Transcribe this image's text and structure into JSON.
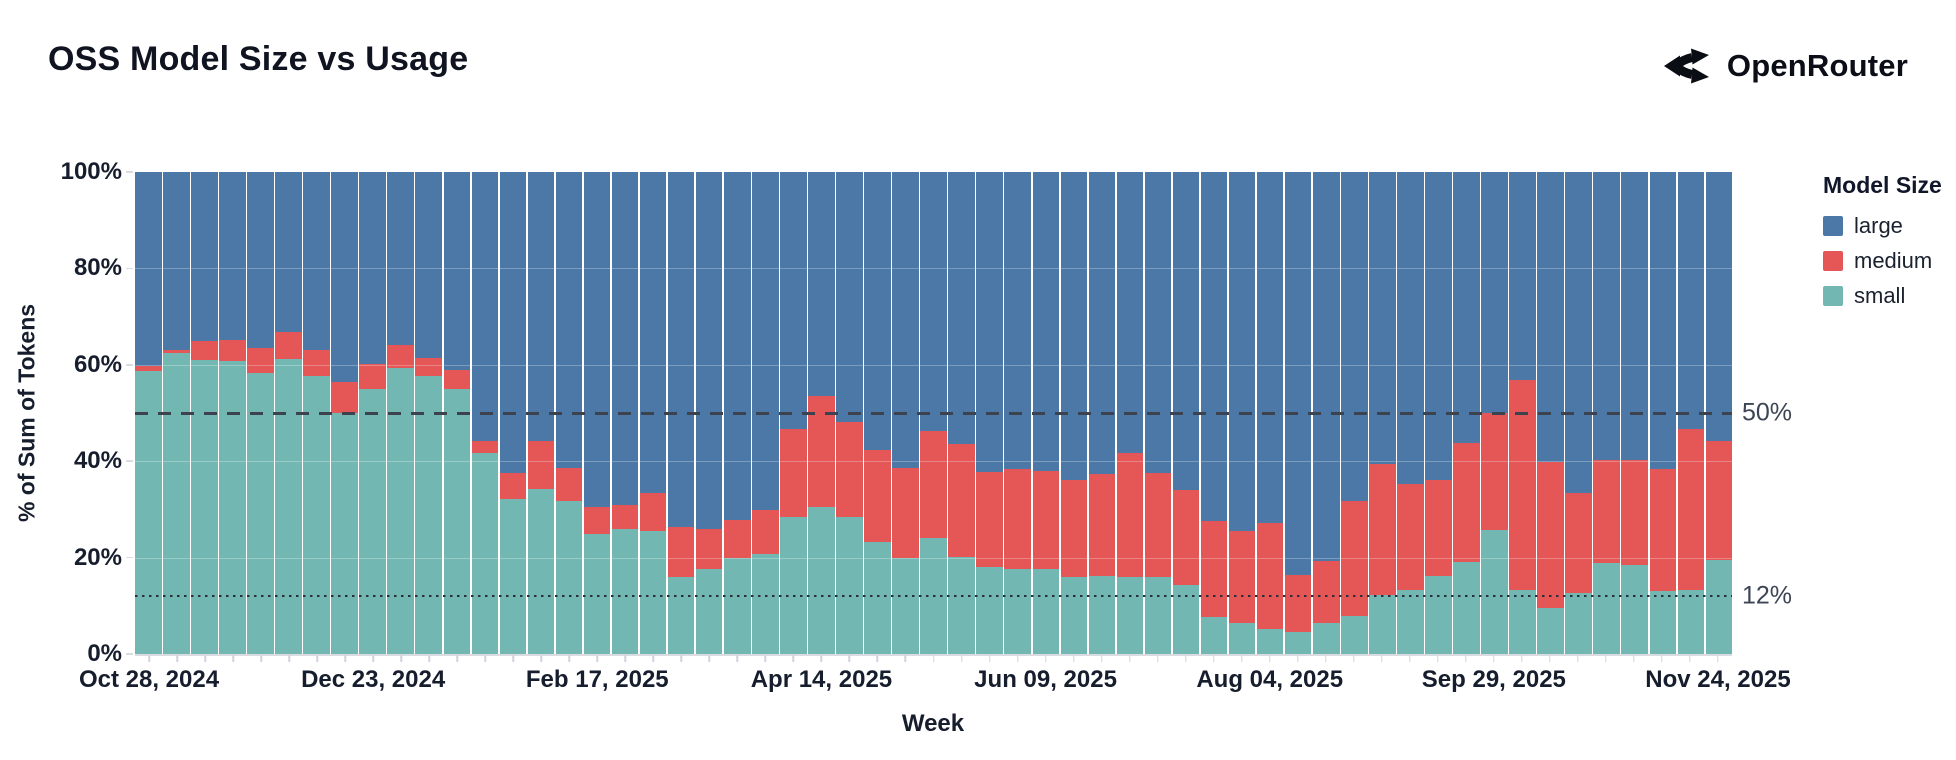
{
  "title": "OSS Model Size vs Usage",
  "brand": {
    "name": "OpenRouter"
  },
  "legend": {
    "title": "Model Size",
    "items": [
      {
        "key": "large",
        "label": "large",
        "color": "#4c78a8"
      },
      {
        "key": "medium",
        "label": "medium",
        "color": "#e45756"
      },
      {
        "key": "small",
        "label": "small",
        "color": "#72b7b2"
      }
    ]
  },
  "axes": {
    "y_title": "% of Sum of Tokens",
    "x_title": "Week",
    "y_ticks": [
      {
        "label": "0%",
        "value": 0
      },
      {
        "label": "20%",
        "value": 20
      },
      {
        "label": "40%",
        "value": 40
      },
      {
        "label": "60%",
        "value": 60
      },
      {
        "label": "80%",
        "value": 80
      },
      {
        "label": "100%",
        "value": 100
      }
    ],
    "x_ticks": [
      {
        "label": "Oct 28, 2024",
        "index": 0
      },
      {
        "label": "Dec 23, 2024",
        "index": 8
      },
      {
        "label": "Feb 17, 2025",
        "index": 16
      },
      {
        "label": "Apr 14, 2025",
        "index": 24
      },
      {
        "label": "Jun 09, 2025",
        "index": 32
      },
      {
        "label": "Aug 04, 2025",
        "index": 40
      },
      {
        "label": "Sep 29, 2025",
        "index": 48
      },
      {
        "label": "Nov 24, 2025",
        "index": 56
      }
    ],
    "gridline_values": [
      20,
      40,
      60,
      80
    ]
  },
  "annotations": [
    {
      "label": "50%",
      "value": 50,
      "style": "dashed"
    },
    {
      "label": "12%",
      "value": 12,
      "style": "dotted"
    }
  ],
  "chart_data": {
    "type": "bar",
    "stacked": true,
    "normalized": true,
    "unit": "%",
    "ylim": [
      0,
      100
    ],
    "stack_order_top_to_bottom": [
      "large",
      "medium",
      "small"
    ],
    "title": "OSS Model Size vs Usage",
    "xlabel": "Week",
    "ylabel": "% of Sum of Tokens",
    "legend_position": "right",
    "weeks": [
      {
        "week": "2024-10-28",
        "small": 58.8,
        "medium": 1.0,
        "large": 40.2
      },
      {
        "week": "2024-11-04",
        "small": 62.4,
        "medium": 0.7,
        "large": 36.9
      },
      {
        "week": "2024-11-11",
        "small": 61.0,
        "medium": 3.9,
        "large": 35.1
      },
      {
        "week": "2024-11-18",
        "small": 60.8,
        "medium": 4.4,
        "large": 34.8
      },
      {
        "week": "2024-11-25",
        "small": 58.4,
        "medium": 5.0,
        "large": 36.6
      },
      {
        "week": "2024-12-02",
        "small": 61.2,
        "medium": 5.7,
        "large": 33.1
      },
      {
        "week": "2024-12-09",
        "small": 57.6,
        "medium": 5.5,
        "large": 36.9
      },
      {
        "week": "2024-12-16",
        "small": 50.0,
        "medium": 6.5,
        "large": 43.5
      },
      {
        "week": "2024-12-23",
        "small": 54.9,
        "medium": 5.3,
        "large": 39.8
      },
      {
        "week": "2024-12-30",
        "small": 59.3,
        "medium": 4.9,
        "large": 35.8
      },
      {
        "week": "2025-01-06",
        "small": 57.7,
        "medium": 3.8,
        "large": 38.5
      },
      {
        "week": "2025-01-13",
        "small": 54.9,
        "medium": 4.1,
        "large": 41.0
      },
      {
        "week": "2025-01-20",
        "small": 41.6,
        "medium": 2.5,
        "large": 55.9
      },
      {
        "week": "2025-01-27",
        "small": 32.1,
        "medium": 5.5,
        "large": 62.4
      },
      {
        "week": "2025-02-03",
        "small": 34.3,
        "medium": 9.8,
        "large": 55.9
      },
      {
        "week": "2025-02-10",
        "small": 31.7,
        "medium": 6.8,
        "large": 61.5
      },
      {
        "week": "2025-02-17",
        "small": 24.9,
        "medium": 5.5,
        "large": 69.6
      },
      {
        "week": "2025-02-24",
        "small": 26.0,
        "medium": 4.9,
        "large": 69.1
      },
      {
        "week": "2025-03-03",
        "small": 25.6,
        "medium": 7.8,
        "large": 66.6
      },
      {
        "week": "2025-03-10",
        "small": 16.0,
        "medium": 10.3,
        "large": 73.7
      },
      {
        "week": "2025-03-17",
        "small": 17.6,
        "medium": 8.4,
        "large": 74.0
      },
      {
        "week": "2025-03-24",
        "small": 20.0,
        "medium": 7.9,
        "large": 72.1
      },
      {
        "week": "2025-03-31",
        "small": 20.8,
        "medium": 9.0,
        "large": 70.2
      },
      {
        "week": "2025-04-07",
        "small": 28.5,
        "medium": 18.1,
        "large": 53.4
      },
      {
        "week": "2025-04-14",
        "small": 30.5,
        "medium": 23.0,
        "large": 46.5
      },
      {
        "week": "2025-04-21",
        "small": 28.5,
        "medium": 19.6,
        "large": 51.9
      },
      {
        "week": "2025-04-28",
        "small": 23.3,
        "medium": 19.1,
        "large": 57.6
      },
      {
        "week": "2025-05-05",
        "small": 20.0,
        "medium": 18.5,
        "large": 61.5
      },
      {
        "week": "2025-05-12",
        "small": 24.0,
        "medium": 22.3,
        "large": 53.7
      },
      {
        "week": "2025-05-19",
        "small": 20.2,
        "medium": 23.3,
        "large": 56.5
      },
      {
        "week": "2025-05-26",
        "small": 18.0,
        "medium": 19.8,
        "large": 62.2
      },
      {
        "week": "2025-06-02",
        "small": 17.6,
        "medium": 20.7,
        "large": 61.7
      },
      {
        "week": "2025-06-09",
        "small": 17.6,
        "medium": 20.4,
        "large": 62.0
      },
      {
        "week": "2025-06-16",
        "small": 16.0,
        "medium": 20.1,
        "large": 63.9
      },
      {
        "week": "2025-06-23",
        "small": 16.2,
        "medium": 21.1,
        "large": 62.7
      },
      {
        "week": "2025-06-30",
        "small": 15.9,
        "medium": 25.8,
        "large": 58.3
      },
      {
        "week": "2025-07-07",
        "small": 16.0,
        "medium": 21.6,
        "large": 62.4
      },
      {
        "week": "2025-07-14",
        "small": 14.3,
        "medium": 19.8,
        "large": 65.9
      },
      {
        "week": "2025-07-21",
        "small": 7.6,
        "medium": 20.0,
        "large": 72.4
      },
      {
        "week": "2025-07-28",
        "small": 6.5,
        "medium": 19.1,
        "large": 74.4
      },
      {
        "week": "2025-08-04",
        "small": 5.1,
        "medium": 22.1,
        "large": 72.8
      },
      {
        "week": "2025-08-11",
        "small": 4.6,
        "medium": 11.8,
        "large": 83.6
      },
      {
        "week": "2025-08-18",
        "small": 6.4,
        "medium": 12.9,
        "large": 80.7
      },
      {
        "week": "2025-08-25",
        "small": 7.9,
        "medium": 23.8,
        "large": 68.3
      },
      {
        "week": "2025-09-01",
        "small": 12.2,
        "medium": 27.3,
        "large": 60.5
      },
      {
        "week": "2025-09-08",
        "small": 13.2,
        "medium": 22.0,
        "large": 64.8
      },
      {
        "week": "2025-09-15",
        "small": 16.2,
        "medium": 19.9,
        "large": 63.9
      },
      {
        "week": "2025-09-22",
        "small": 19.1,
        "medium": 24.6,
        "large": 56.3
      },
      {
        "week": "2025-09-29",
        "small": 25.8,
        "medium": 24.2,
        "large": 50.0
      },
      {
        "week": "2025-10-06",
        "small": 13.3,
        "medium": 43.6,
        "large": 43.1
      },
      {
        "week": "2025-10-13",
        "small": 9.5,
        "medium": 30.4,
        "large": 60.1
      },
      {
        "week": "2025-10-20",
        "small": 12.6,
        "medium": 20.9,
        "large": 66.5
      },
      {
        "week": "2025-10-27",
        "small": 18.9,
        "medium": 21.4,
        "large": 59.7
      },
      {
        "week": "2025-11-03",
        "small": 18.4,
        "medium": 21.8,
        "large": 59.8
      },
      {
        "week": "2025-11-10",
        "small": 13.1,
        "medium": 25.2,
        "large": 61.7
      },
      {
        "week": "2025-11-17",
        "small": 13.3,
        "medium": 33.3,
        "large": 53.4
      },
      {
        "week": "2025-11-24",
        "small": 19.6,
        "medium": 24.6,
        "large": 55.8
      }
    ]
  }
}
